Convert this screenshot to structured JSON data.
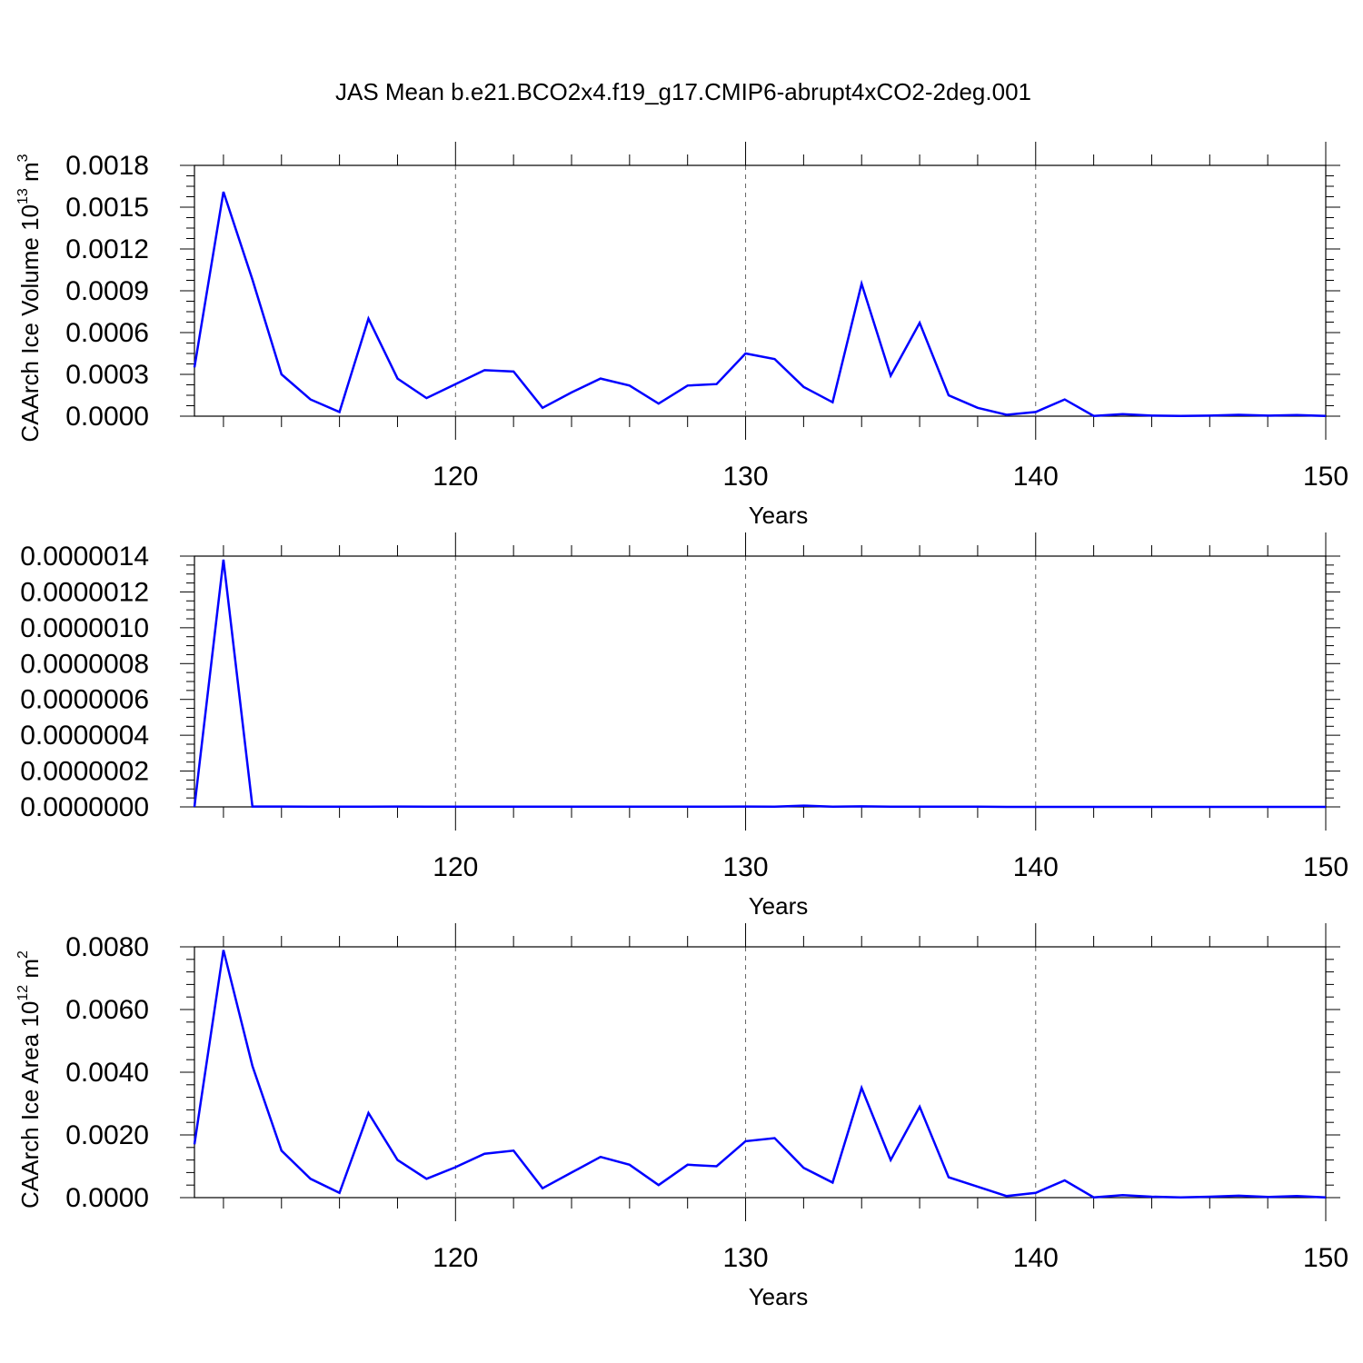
{
  "title": "JAS Mean b.e21.BCO2x4.f19_g17.CMIP6-abrupt4xCO2-2deg.001",
  "line_color": "#0000ff",
  "chart_data": [
    {
      "type": "line",
      "ylabel": "CAArch Ice Volume 10",
      "ylabel_exp": "13",
      "ylabel_unit": " m",
      "ylabel_unit_exp": "3",
      "xlabel": "Years",
      "xlim": [
        111,
        150
      ],
      "ylim": [
        0,
        0.0018
      ],
      "yticks": [
        "0.0000",
        "0.0003",
        "0.0006",
        "0.0009",
        "0.0012",
        "0.0015",
        "0.0018"
      ],
      "xticks": [
        "120",
        "130",
        "140",
        "150"
      ],
      "grid": "dashed vertical at x ticks",
      "x": [
        111,
        112,
        113,
        114,
        115,
        116,
        117,
        118,
        119,
        120,
        121,
        122,
        123,
        124,
        125,
        126,
        127,
        128,
        129,
        130,
        131,
        132,
        133,
        134,
        135,
        136,
        137,
        138,
        139,
        140,
        141,
        142,
        143,
        144,
        145,
        146,
        147,
        148,
        149,
        150
      ],
      "values": [
        0.00035,
        0.00161,
        0.00098,
        0.0003,
        0.00012,
        3e-05,
        0.0007,
        0.00027,
        0.00013,
        0.00023,
        0.00033,
        0.00032,
        6e-05,
        0.00017,
        0.00027,
        0.00022,
        9e-05,
        0.00022,
        0.00023,
        0.00045,
        0.00041,
        0.00021,
        0.0001,
        0.00095,
        0.00029,
        0.00067,
        0.00015,
        6e-05,
        1e-05,
        3e-05,
        0.00012,
        2e-06,
        1.5e-05,
        4e-06,
        2e-06,
        4e-06,
        1e-05,
        4e-06,
        8e-06,
        2e-06
      ]
    },
    {
      "type": "line",
      "ylabel": "",
      "xlabel": "Years",
      "xlim": [
        111,
        150
      ],
      "ylim": [
        0,
        1.4e-06
      ],
      "yticks": [
        "0.0000000",
        "0.0000002",
        "0.0000004",
        "0.0000006",
        "0.0000008",
        "0.0000010",
        "0.0000012",
        "0.0000014"
      ],
      "xticks": [
        "120",
        "130",
        "140",
        "150"
      ],
      "grid": "dashed vertical at x ticks",
      "x": [
        111,
        112,
        113,
        114,
        115,
        116,
        117,
        118,
        119,
        120,
        121,
        122,
        123,
        124,
        125,
        126,
        127,
        128,
        129,
        130,
        131,
        132,
        133,
        134,
        135,
        136,
        137,
        138,
        139,
        140,
        141,
        142,
        143,
        144,
        145,
        146,
        147,
        148,
        149,
        150
      ],
      "values": [
        0,
        1.38e-06,
        2e-09,
        2e-09,
        1e-09,
        1e-09,
        1e-09,
        2e-09,
        1e-09,
        1e-09,
        1e-09,
        1e-09,
        1e-09,
        1e-09,
        1e-09,
        1e-09,
        1e-09,
        1e-09,
        1e-09,
        2e-09,
        1e-09,
        7e-09,
        1e-09,
        3e-09,
        1e-09,
        1e-09,
        1e-09,
        1e-09,
        0,
        0,
        0,
        0,
        0,
        0,
        0,
        0,
        0,
        0,
        0,
        0
      ]
    },
    {
      "type": "line",
      "ylabel": "CAArch Ice Area 10",
      "ylabel_exp": "12",
      "ylabel_unit": " m",
      "ylabel_unit_exp": "2",
      "xlabel": "Years",
      "xlim": [
        111,
        150
      ],
      "ylim": [
        0,
        0.008
      ],
      "yticks": [
        "0.0000",
        "0.0020",
        "0.0040",
        "0.0060",
        "0.0080"
      ],
      "xticks": [
        "120",
        "130",
        "140",
        "150"
      ],
      "grid": "dashed vertical at x ticks",
      "x": [
        111,
        112,
        113,
        114,
        115,
        116,
        117,
        118,
        119,
        120,
        121,
        122,
        123,
        124,
        125,
        126,
        127,
        128,
        129,
        130,
        131,
        132,
        133,
        134,
        135,
        136,
        137,
        138,
        139,
        140,
        141,
        142,
        143,
        144,
        145,
        146,
        147,
        148,
        149,
        150
      ],
      "values": [
        0.0017,
        0.0079,
        0.0042,
        0.0015,
        0.0006,
        0.00015,
        0.0027,
        0.0012,
        0.0006,
        0.00097,
        0.0014,
        0.0015,
        0.0003,
        0.0008,
        0.0013,
        0.00105,
        0.0004,
        0.00105,
        0.001,
        0.0018,
        0.0019,
        0.00095,
        0.00048,
        0.0035,
        0.0012,
        0.0029,
        0.00065,
        0.00035,
        5e-05,
        0.00015,
        0.00055,
        1e-05,
        8e-05,
        3e-05,
        1e-05,
        3e-05,
        6e-05,
        2e-05,
        5e-05,
        1e-05
      ]
    }
  ]
}
